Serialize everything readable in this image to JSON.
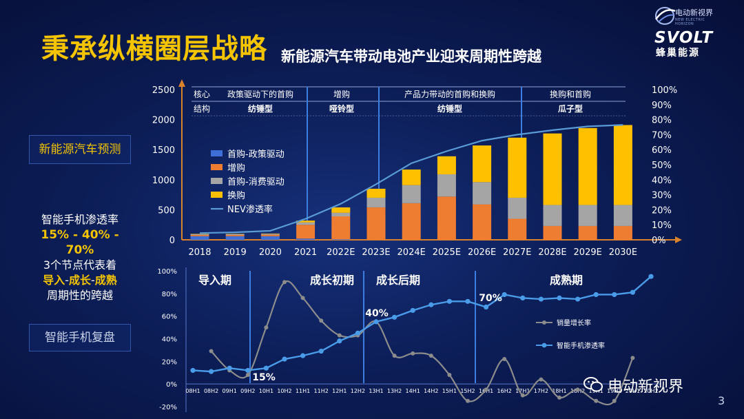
{
  "title": "秉承纵横圈层战略",
  "subtitle": "新能源汽车带动电池产业迎来周期性跨越",
  "logo": {
    "small_text": "电动新视界",
    "small_en": "NEW ELECTRIC HORIZON",
    "brand": "SVOLT",
    "brand_cn": "蜂巢能源",
    "icon": "globe-logo-icon"
  },
  "side": {
    "forecast_label": "新能源汽车预测",
    "smart_title": "智能手机渗透率",
    "smart_rates": "15% - 40% - 70%",
    "smart_desc": "3个节点代表着",
    "phase_1": "导入",
    "phase_sep1": "-",
    "phase_2": "成长",
    "phase_sep2": "-",
    "phase_3": "成熟",
    "smart_desc2": "周期性的跨越",
    "review_label": "智能手机复盘"
  },
  "colors": {
    "policy": "#3f6fd6",
    "increase": "#ef7d31",
    "consumer": "#a5a5a5",
    "replace": "#ffc000",
    "nev_line": "#5b9bd5",
    "sales_growth": "#8c8c8c",
    "smartphone": "#4a9ce8",
    "accent": "#f5c400"
  },
  "watermark": {
    "text": "电动新视界",
    "icon": "wechat-icon"
  },
  "page_number": "3",
  "chart_data": [
    {
      "type": "bar",
      "stacked": true,
      "categories": [
        "2018",
        "2019",
        "2020",
        "2021",
        "2022E",
        "2023E",
        "2024E",
        "2025E",
        "2026E",
        "2027E",
        "2028E",
        "2029E",
        "2030E"
      ],
      "series": [
        {
          "name": "首购-政策驱动",
          "values": [
            60,
            60,
            60,
            20,
            10,
            0,
            0,
            0,
            0,
            0,
            0,
            0,
            0
          ]
        },
        {
          "name": "增购",
          "values": [
            20,
            20,
            25,
            230,
            380,
            540,
            610,
            720,
            590,
            350,
            230,
            230,
            230
          ]
        },
        {
          "name": "首购-消费驱动",
          "values": [
            15,
            15,
            15,
            40,
            60,
            160,
            300,
            370,
            370,
            350,
            350,
            350,
            350
          ]
        },
        {
          "name": "换购",
          "values": [
            5,
            5,
            5,
            30,
            90,
            150,
            260,
            300,
            610,
            1000,
            1190,
            1280,
            1330
          ]
        }
      ],
      "line": {
        "name": "NEV渗透率",
        "axis": "right",
        "values": [
          4.5,
          5,
          6,
          14,
          24,
          37,
          51,
          59,
          66,
          70,
          73,
          75.5,
          76.5
        ]
      },
      "ylim": [
        0,
        2500
      ],
      "yticks": [
        "0",
        "500",
        "1000",
        "1500",
        "2000",
        "2500"
      ],
      "y2lim": [
        0,
        100
      ],
      "y2ticks": [
        "0%",
        "10%",
        "20%",
        "30%",
        "40%",
        "50%",
        "60%",
        "70%",
        "80%",
        "90%",
        "100%"
      ],
      "legend_position": "left",
      "header": {
        "row1_label": "核心",
        "row2_label": "结构",
        "segments": [
          {
            "core": "政策驱动下的首购",
            "structure": "纺锤型"
          },
          {
            "core": "增购",
            "structure": "哑铃型"
          },
          {
            "core": "产品力带动的首购和换购",
            "structure": "纺锤型"
          },
          {
            "core": "换购和首购",
            "structure": "瓜子型"
          }
        ]
      }
    },
    {
      "type": "line",
      "categories": [
        "08H1",
        "08H2",
        "09H1",
        "09H2",
        "10H1",
        "10H2",
        "11H1",
        "11H2",
        "12H1",
        "12H2",
        "13H1",
        "13H2",
        "14H1",
        "14H2",
        "15H1",
        "15H2",
        "16H1",
        "16H2",
        "17H1",
        "17H2",
        "18H1",
        "18H2",
        "19H1",
        "19H2",
        "20H1",
        "20H2"
      ],
      "series": [
        {
          "name": "销量增长率",
          "values": [
            null,
            29,
            12,
            8,
            50,
            90,
            76,
            56,
            43,
            43,
            55,
            25,
            27,
            25,
            8,
            -15,
            -5,
            22,
            -10,
            4,
            -12,
            -5,
            -15,
            -15,
            23,
            null
          ]
        },
        {
          "name": "智能手机渗透率",
          "values": [
            12,
            11,
            14,
            12,
            14,
            22,
            25,
            29,
            38,
            45,
            55,
            59,
            65,
            70,
            73,
            73,
            68,
            79,
            76,
            75,
            76,
            75,
            79,
            79,
            81,
            95
          ]
        }
      ],
      "ylim": [
        -20,
        100
      ],
      "yticks": [
        "-20%",
        "0%",
        "20%",
        "40%",
        "60%",
        "80%",
        "100%"
      ],
      "phases": [
        "导入期",
        "成长初期",
        "成长后期",
        "成熟期"
      ],
      "callouts": [
        "15%",
        "40%",
        "70%"
      ],
      "legend_position": "right"
    }
  ]
}
